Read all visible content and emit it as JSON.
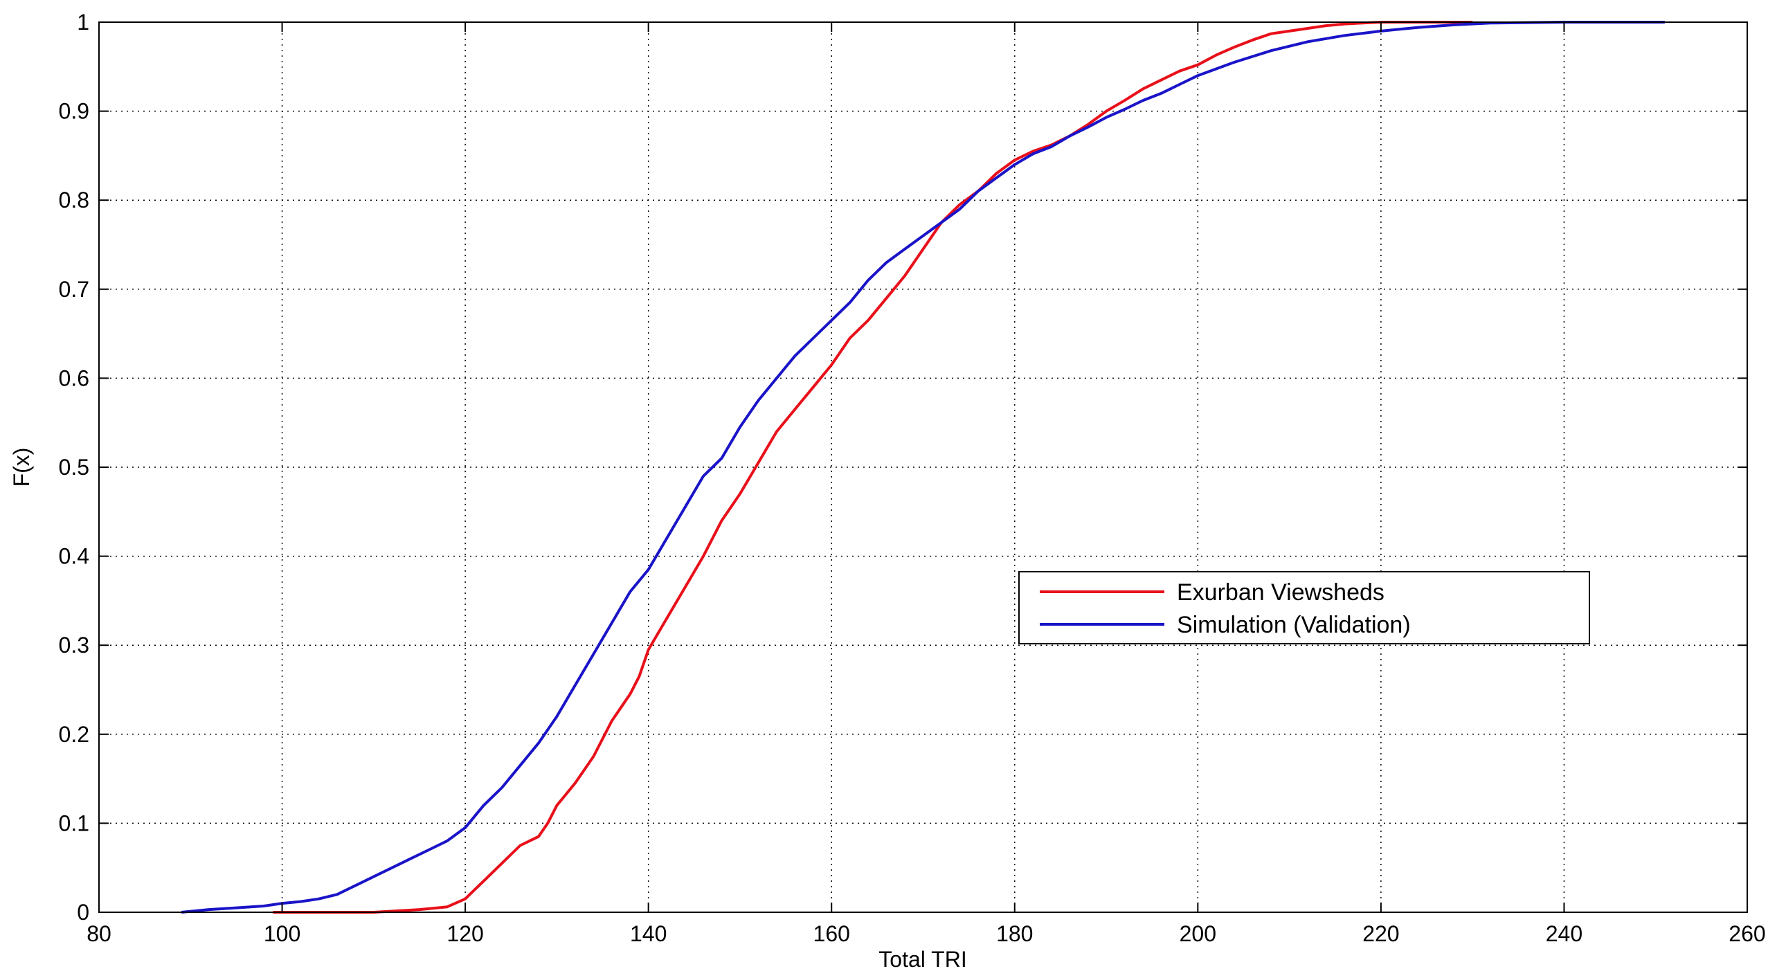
{
  "chart_data": {
    "type": "line",
    "title": "",
    "xlabel": "Total TRI",
    "ylabel": "F(x)",
    "xlim": [
      80,
      260
    ],
    "ylim": [
      0,
      1
    ],
    "xticks": [
      80,
      100,
      120,
      140,
      160,
      180,
      200,
      220,
      240,
      260
    ],
    "yticks": [
      0,
      0.1,
      0.2,
      0.3,
      0.4,
      0.5,
      0.6,
      0.7,
      0.8,
      0.9,
      1
    ],
    "xtick_labels": [
      "80",
      "100",
      "120",
      "140",
      "160",
      "180",
      "200",
      "220",
      "240",
      "260"
    ],
    "ytick_labels": [
      "0",
      "0.1",
      "0.2",
      "0.3",
      "0.4",
      "0.5",
      "0.6",
      "0.7",
      "0.8",
      "0.9",
      "1"
    ],
    "grid": true,
    "grid_style": "dotted",
    "legend_position": "center-right",
    "series": [
      {
        "name": "Exurban Viewsheds",
        "color": "#e8101a",
        "x": [
          99,
          105,
          110,
          115,
          118,
          120,
          121,
          122,
          124,
          126,
          128,
          129,
          130,
          132,
          134,
          136,
          138,
          139,
          140,
          142,
          144,
          146,
          148,
          150,
          152,
          154,
          156,
          158,
          160,
          162,
          164,
          166,
          168,
          170,
          172,
          174,
          176,
          178,
          180,
          182,
          184,
          186,
          188,
          190,
          192,
          194,
          196,
          198,
          200,
          202,
          204,
          206,
          208,
          210,
          212,
          214,
          216,
          218,
          220,
          225,
          230
        ],
        "y": [
          0,
          0,
          0,
          0.003,
          0.006,
          0.015,
          0.025,
          0.035,
          0.055,
          0.075,
          0.085,
          0.1,
          0.12,
          0.145,
          0.175,
          0.215,
          0.245,
          0.265,
          0.295,
          0.33,
          0.365,
          0.4,
          0.44,
          0.47,
          0.505,
          0.54,
          0.565,
          0.59,
          0.615,
          0.645,
          0.665,
          0.69,
          0.715,
          0.745,
          0.775,
          0.795,
          0.81,
          0.83,
          0.845,
          0.855,
          0.862,
          0.872,
          0.885,
          0.9,
          0.912,
          0.925,
          0.935,
          0.945,
          0.952,
          0.963,
          0.972,
          0.98,
          0.987,
          0.99,
          0.993,
          0.996,
          0.998,
          0.999,
          1.0,
          1.0,
          1.0
        ]
      },
      {
        "name": "Simulation (Validation)",
        "color": "#1a14c8",
        "x": [
          89,
          92,
          95,
          98,
          100,
          102,
          104,
          106,
          108,
          110,
          112,
          114,
          116,
          118,
          120,
          122,
          124,
          126,
          128,
          130,
          132,
          134,
          136,
          138,
          140,
          142,
          144,
          146,
          148,
          150,
          152,
          154,
          156,
          158,
          160,
          162,
          164,
          166,
          168,
          170,
          172,
          174,
          176,
          178,
          180,
          182,
          184,
          186,
          188,
          190,
          192,
          194,
          196,
          198,
          200,
          204,
          208,
          212,
          216,
          220,
          224,
          228,
          232,
          240,
          251
        ],
        "y": [
          0,
          0.003,
          0.005,
          0.007,
          0.01,
          0.012,
          0.015,
          0.02,
          0.03,
          0.04,
          0.05,
          0.06,
          0.07,
          0.08,
          0.095,
          0.12,
          0.14,
          0.165,
          0.19,
          0.22,
          0.255,
          0.29,
          0.325,
          0.36,
          0.385,
          0.42,
          0.455,
          0.49,
          0.51,
          0.545,
          0.575,
          0.6,
          0.625,
          0.645,
          0.665,
          0.685,
          0.71,
          0.73,
          0.745,
          0.76,
          0.775,
          0.79,
          0.81,
          0.825,
          0.84,
          0.852,
          0.86,
          0.872,
          0.882,
          0.893,
          0.902,
          0.912,
          0.92,
          0.93,
          0.94,
          0.955,
          0.968,
          0.978,
          0.985,
          0.99,
          0.994,
          0.997,
          0.999,
          1.0,
          1.0
        ]
      }
    ]
  }
}
